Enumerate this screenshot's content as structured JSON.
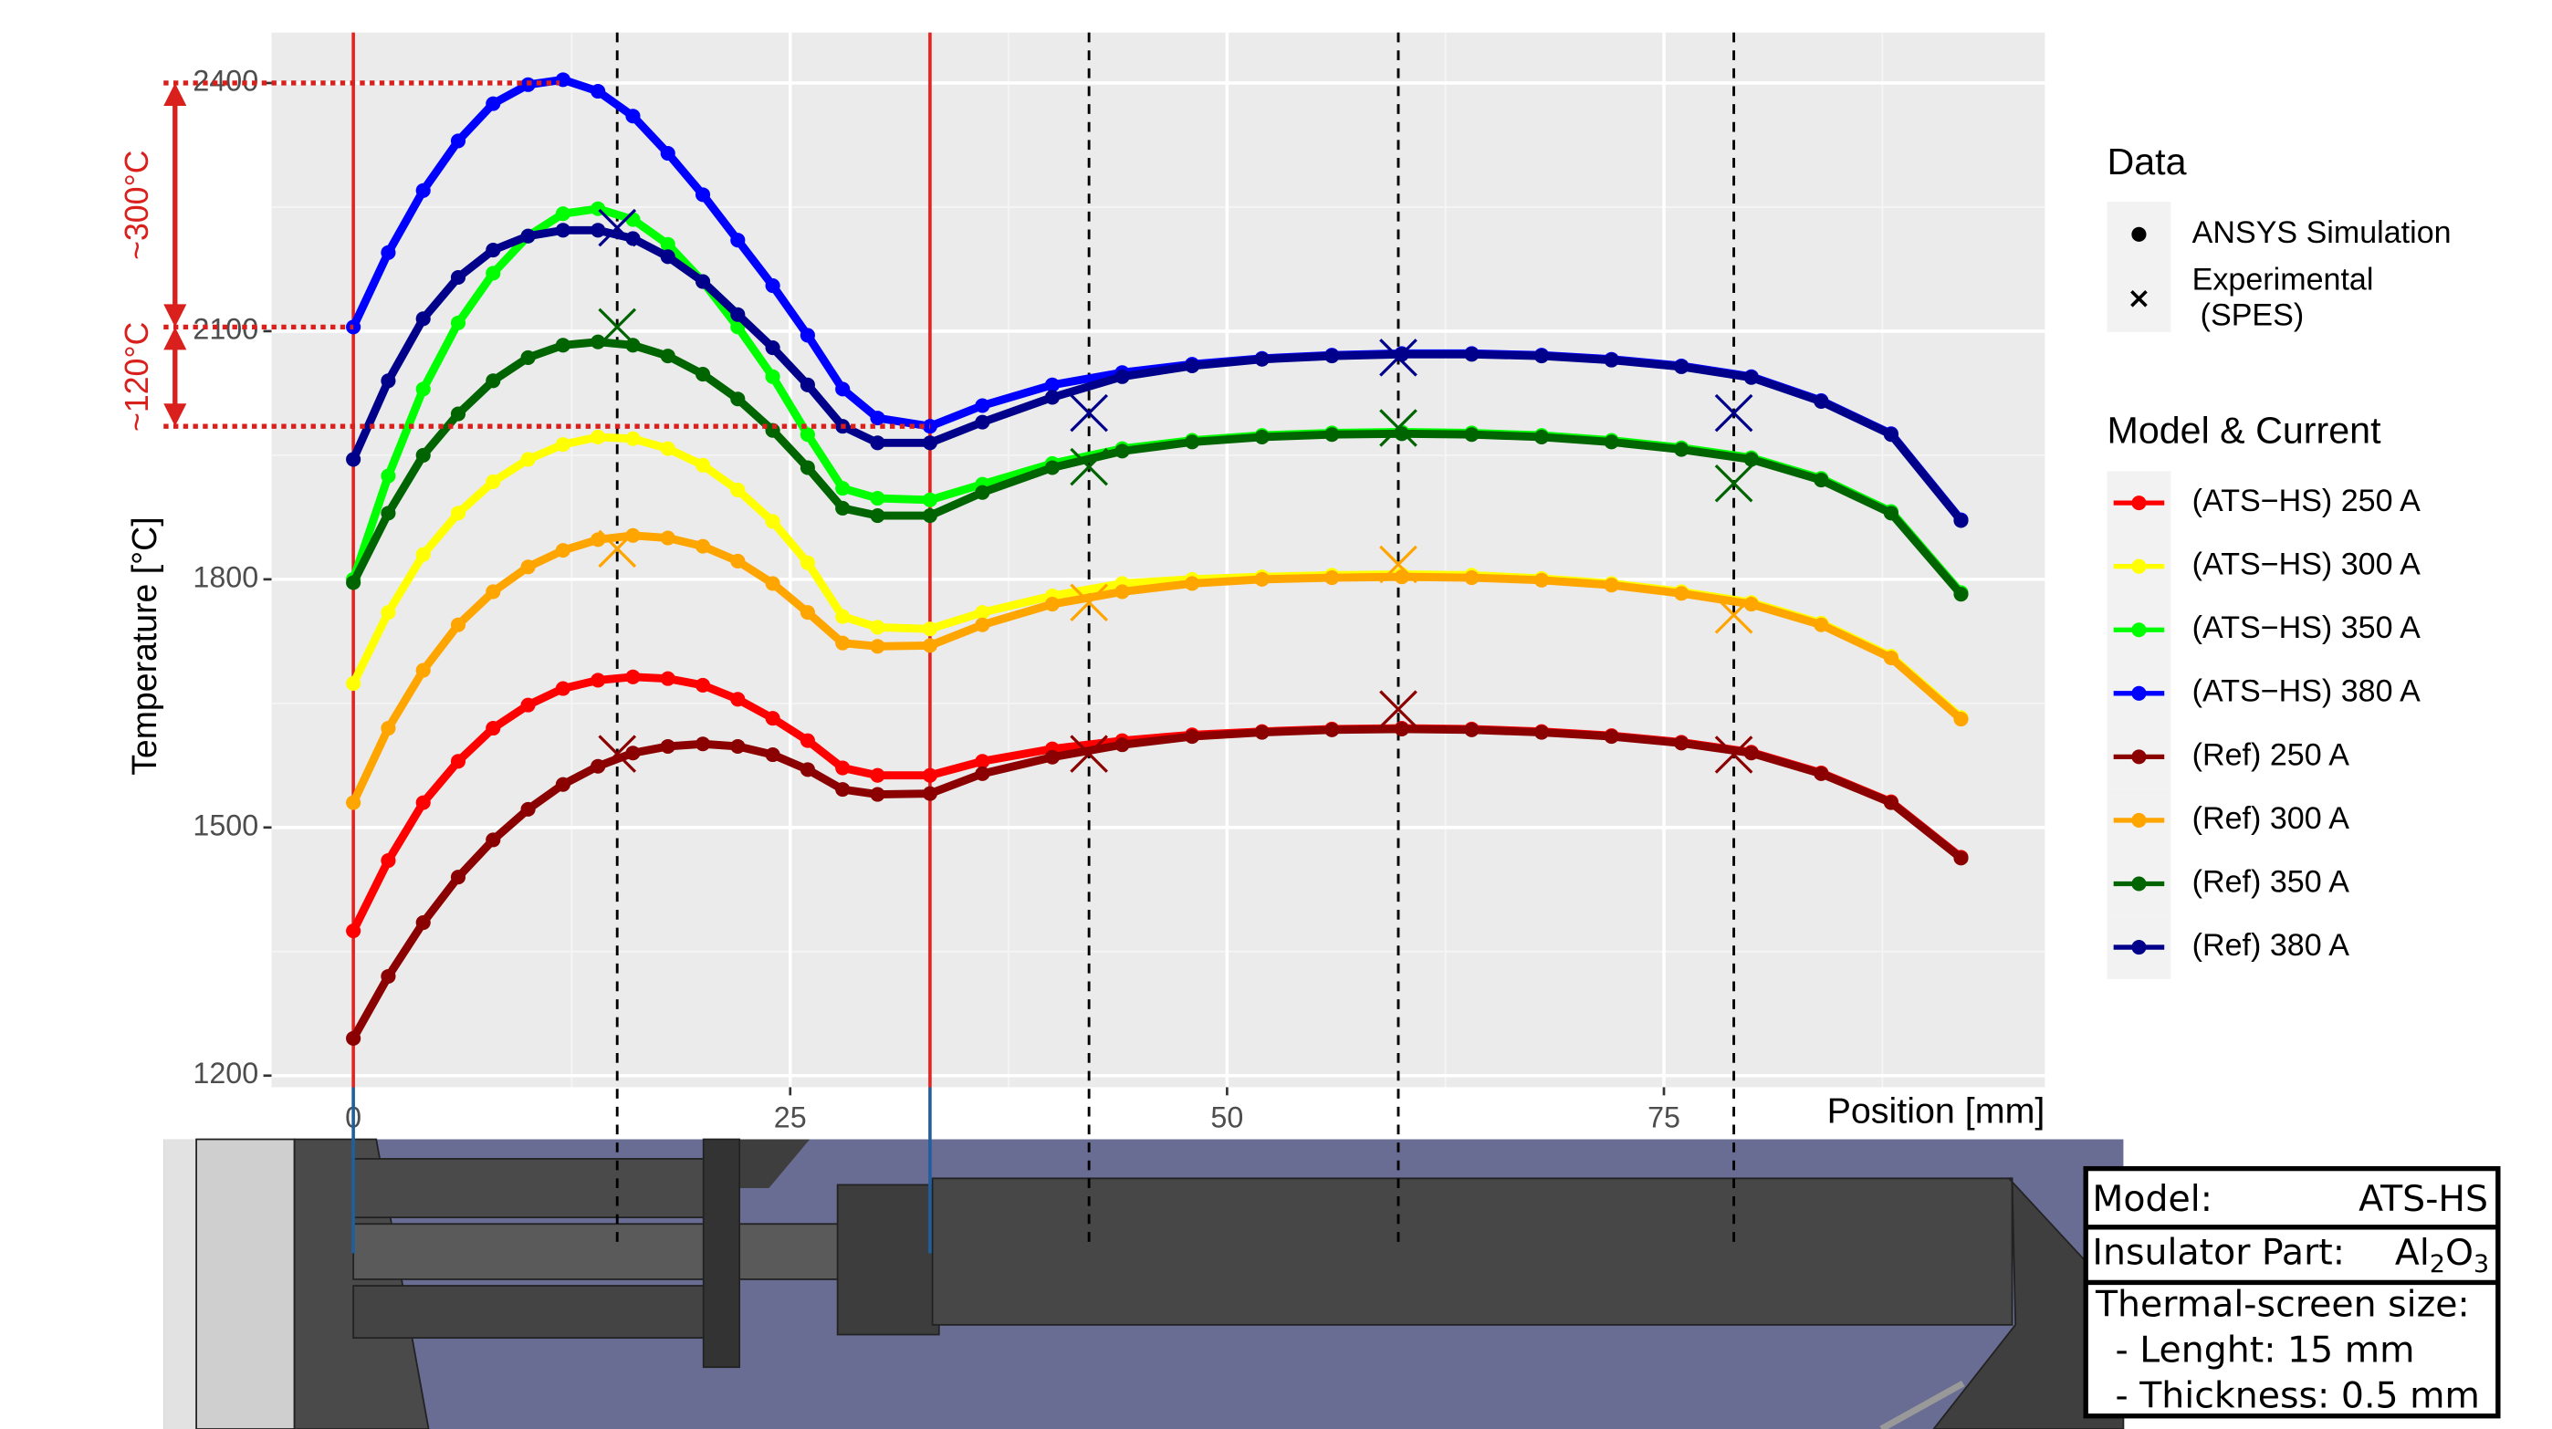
{
  "chart_data": {
    "type": "line",
    "y_label": "Temperature [°C]",
    "x_label": "Position [mm]",
    "xlim": [
      -4.68,
      96.8
    ],
    "xticks": [
      0,
      25,
      50,
      75
    ],
    "x_minor": [
      12.5,
      37.5,
      62.5,
      87.5
    ],
    "ylim": [
      1186,
      2461
    ],
    "yticks": [
      1200,
      1500,
      1800,
      2100,
      2400
    ],
    "y_minor": [
      1350,
      1650,
      1950,
      2250
    ],
    "grid": true,
    "x": [
      0,
      2,
      4,
      6,
      8,
      10,
      12,
      14,
      16,
      18,
      20,
      22,
      24,
      26,
      28,
      30,
      33,
      36,
      40,
      44,
      48,
      52,
      56,
      60,
      64,
      68,
      72,
      76,
      80,
      84,
      88,
      92
    ],
    "exp_x": [
      15.1,
      42.1,
      59.8,
      79
    ],
    "series": [
      {
        "name": "(ATS−HS) 250 A",
        "color": "#ff0000",
        "values": [
          1375,
          1460,
          1530,
          1580,
          1620,
          1648,
          1668,
          1678,
          1682,
          1680,
          1672,
          1655,
          1632,
          1605,
          1572,
          1563,
          1563,
          1580,
          1595,
          1605,
          1612,
          1616,
          1619,
          1620,
          1619,
          1616,
          1611,
          1603,
          1591,
          1566,
          1531,
          1464
        ]
      },
      {
        "name": "(ATS−HS) 300 A",
        "color": "#ffff00",
        "values": [
          1674,
          1760,
          1830,
          1880,
          1918,
          1945,
          1963,
          1972,
          1970,
          1958,
          1938,
          1908,
          1870,
          1820,
          1755,
          1742,
          1740,
          1760,
          1780,
          1795,
          1800,
          1803,
          1805,
          1806,
          1805,
          1801,
          1795,
          1785,
          1772,
          1747,
          1707,
          1633
        ]
      },
      {
        "name": "(ATS−HS) 350 A",
        "color": "#00ff00",
        "values": [
          1800,
          1925,
          2030,
          2110,
          2170,
          2215,
          2242,
          2248,
          2235,
          2205,
          2160,
          2105,
          2045,
          1975,
          1910,
          1898,
          1896,
          1915,
          1940,
          1958,
          1968,
          1974,
          1977,
          1978,
          1977,
          1974,
          1968,
          1959,
          1947,
          1922,
          1882,
          1784
        ]
      },
      {
        "name": "(ATS−HS) 380 A",
        "color": "#0000ff",
        "values": [
          2105,
          2195,
          2270,
          2330,
          2375,
          2398,
          2404,
          2390,
          2360,
          2315,
          2265,
          2210,
          2155,
          2095,
          2030,
          1995,
          1985,
          2010,
          2035,
          2050,
          2060,
          2067,
          2071,
          2073,
          2073,
          2071,
          2066,
          2058,
          2045,
          2016,
          1976,
          1872
        ]
      },
      {
        "name": "(Ref) 250 A",
        "color": "#8b0000",
        "values": [
          1245,
          1320,
          1385,
          1440,
          1485,
          1522,
          1552,
          1574,
          1590,
          1598,
          1601,
          1598,
          1588,
          1570,
          1546,
          1540,
          1541,
          1565,
          1585,
          1600,
          1610,
          1615,
          1618,
          1619,
          1618,
          1615,
          1610,
          1602,
          1590,
          1565,
          1530,
          1463
        ],
        "exp_values": [
          1589,
          1589,
          1643,
          1588
        ]
      },
      {
        "name": "(Ref) 300 A",
        "color": "#ffa500",
        "values": [
          1530,
          1620,
          1690,
          1745,
          1785,
          1815,
          1835,
          1848,
          1853,
          1850,
          1840,
          1822,
          1795,
          1760,
          1723,
          1719,
          1720,
          1745,
          1770,
          1785,
          1795,
          1800,
          1802,
          1803,
          1802,
          1799,
          1793,
          1783,
          1770,
          1745,
          1705,
          1631
        ],
        "exp_values": [
          1837,
          1772,
          1818,
          1757
        ]
      },
      {
        "name": "(Ref) 350 A",
        "color": "#006400",
        "values": [
          1796,
          1880,
          1950,
          2000,
          2040,
          2068,
          2083,
          2087,
          2083,
          2070,
          2048,
          2018,
          1980,
          1935,
          1886,
          1877,
          1877,
          1905,
          1935,
          1955,
          1966,
          1972,
          1975,
          1976,
          1975,
          1972,
          1966,
          1957,
          1945,
          1920,
          1880,
          1782
        ],
        "exp_values": [
          2105,
          1936,
          1983,
          1916
        ]
      },
      {
        "name": "(Ref) 380 A",
        "color": "#00008b",
        "values": [
          1945,
          2040,
          2115,
          2165,
          2198,
          2215,
          2222,
          2222,
          2212,
          2190,
          2160,
          2120,
          2080,
          2035,
          1985,
          1965,
          1965,
          1990,
          2020,
          2045,
          2058,
          2066,
          2070,
          2072,
          2072,
          2070,
          2065,
          2057,
          2044,
          2015,
          1975,
          1871
        ],
        "exp_values": [
          2225,
          2001,
          2068,
          2001
        ]
      }
    ],
    "solid_vlines": [
      0,
      33
    ],
    "ref_lines": [
      2400,
      2105,
      1985
    ],
    "annotations": [
      "~300°C",
      "~120°C"
    ],
    "data_legend": {
      "title": "Data",
      "entries": [
        [
          "ANSYS Simulation"
        ],
        [
          "Experimental",
          "(SPES)"
        ]
      ]
    },
    "legend_title": "Model & Current"
  },
  "info_box": {
    "model_label": "Model:",
    "model_value": "ATS-HS",
    "insulator_label": "Insulator Part:",
    "insulator_value": [
      "Al",
      "2",
      "O",
      "3"
    ],
    "screen_title": "Thermal-screen size:",
    "screen_lines": [
      "- Lenght: 15 mm",
      "- Thickness: 0.5 mm"
    ]
  }
}
